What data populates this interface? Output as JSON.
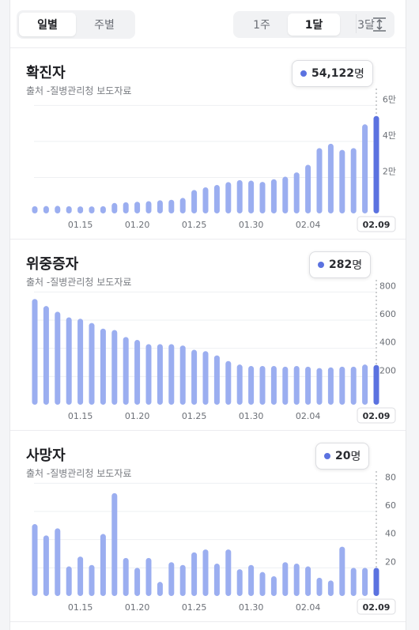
{
  "tabs": {
    "period": [
      {
        "label": "일별",
        "active": true
      },
      {
        "label": "주별",
        "active": false
      }
    ],
    "range": [
      {
        "label": "1주",
        "active": false
      },
      {
        "label": "1달",
        "active": true
      },
      {
        "label": "3달",
        "active": false
      }
    ]
  },
  "icons": {
    "expand": "expand-vertical-icon"
  },
  "colors": {
    "bar": "#9baef0",
    "bar_selected": "#5b72e0",
    "grid": "#eef0f3"
  },
  "sections": [
    {
      "title": "확진자",
      "source": "출처 -질병관리청 보도자료",
      "badge_value": "54,122",
      "badge_unit": "명"
    },
    {
      "title": "위중증자",
      "source": "출처 -질병관리청 보도자료",
      "badge_value": "282",
      "badge_unit": "명"
    },
    {
      "title": "사망자",
      "source": "출처 -질병관리청 보도자료",
      "badge_value": "20",
      "badge_unit": "명"
    }
  ],
  "chart_data": [
    {
      "type": "bar",
      "title": "확진자",
      "x_tick_labels": [
        "01.15",
        "01.20",
        "01.25",
        "01.30",
        "02.04",
        "02.09"
      ],
      "selected_label": "02.09",
      "y_ticks": [
        {
          "value": 20000,
          "label": "2만"
        },
        {
          "value": 40000,
          "label": "4만"
        },
        {
          "value": 60000,
          "label": "6만"
        }
      ],
      "ylim": [
        0,
        65000
      ],
      "values": [
        4000,
        4100,
        4200,
        4000,
        3900,
        3900,
        4000,
        5800,
        6200,
        6500,
        6800,
        7300,
        7600,
        8600,
        13000,
        14500,
        15800,
        17400,
        18500,
        18200,
        17500,
        19000,
        20400,
        22800,
        27000,
        36300,
        38700,
        35300,
        36300,
        49500,
        54122
      ]
    },
    {
      "type": "bar",
      "title": "위중증자",
      "x_tick_labels": [
        "01.15",
        "01.20",
        "01.25",
        "01.30",
        "02.04",
        "02.09"
      ],
      "selected_label": "02.09",
      "y_ticks": [
        {
          "value": 200,
          "label": "200"
        },
        {
          "value": 400,
          "label": "400"
        },
        {
          "value": 600,
          "label": "600"
        },
        {
          "value": 800,
          "label": "800"
        }
      ],
      "ylim": [
        0,
        830
      ],
      "values": [
        750,
        700,
        660,
        620,
        610,
        580,
        540,
        530,
        480,
        460,
        430,
        430,
        430,
        420,
        390,
        380,
        350,
        310,
        285,
        275,
        275,
        275,
        270,
        275,
        270,
        260,
        265,
        270,
        270,
        285,
        282
      ]
    },
    {
      "type": "bar",
      "title": "사망자",
      "x_tick_labels": [
        "01.15",
        "01.20",
        "01.25",
        "01.30",
        "02.04",
        "02.09"
      ],
      "selected_label": "02.09",
      "y_ticks": [
        {
          "value": 20,
          "label": "20"
        },
        {
          "value": 40,
          "label": "40"
        },
        {
          "value": 60,
          "label": "60"
        },
        {
          "value": 80,
          "label": "80"
        }
      ],
      "ylim": [
        0,
        83
      ],
      "values": [
        51,
        43,
        48,
        21,
        28,
        22,
        44,
        73,
        27,
        20,
        27,
        10,
        24,
        22,
        31,
        33,
        23,
        33,
        19,
        22,
        17,
        14,
        24,
        23,
        21,
        13,
        11,
        35,
        20,
        20,
        20
      ]
    }
  ]
}
